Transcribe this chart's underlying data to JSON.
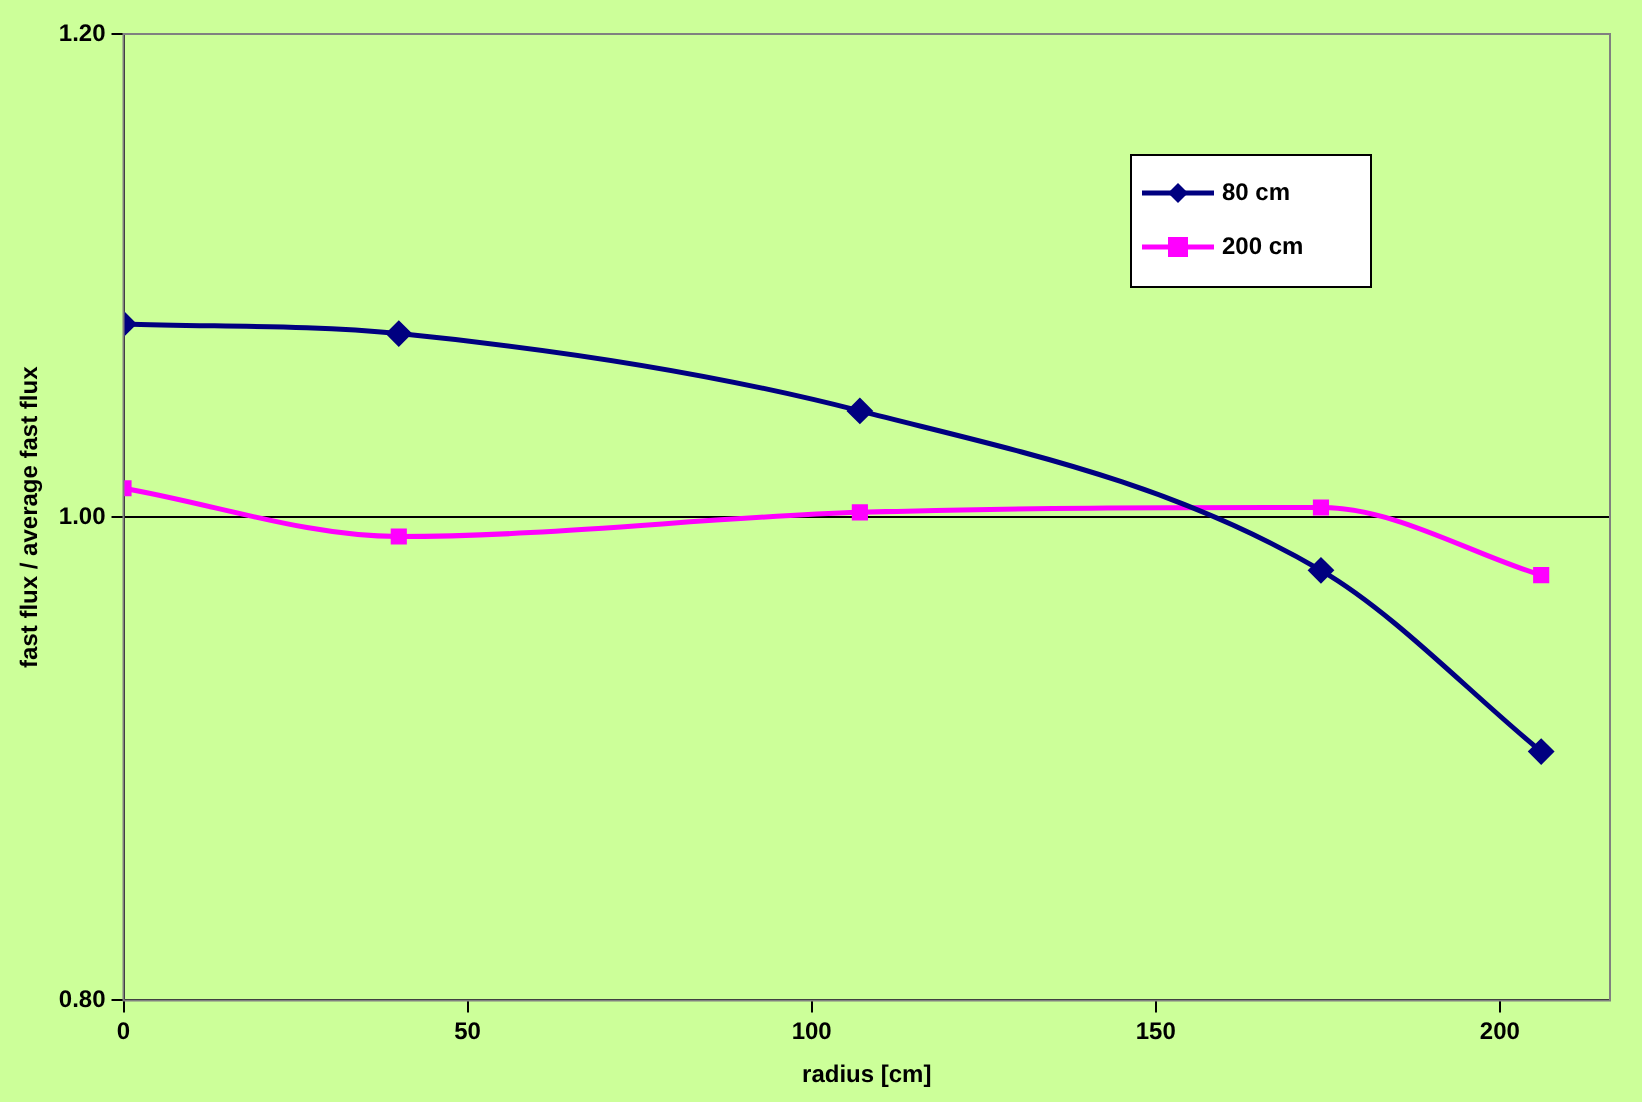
{
  "chart_data": {
    "type": "line",
    "xlabel": "radius [cm]",
    "ylabel": "fast flux / average fast flux",
    "xlim": [
      0,
      216
    ],
    "xticks": [
      0,
      50,
      100,
      150,
      200
    ],
    "ylim": [
      0.8,
      1.2
    ],
    "yticks": [
      {
        "value": 0.8,
        "label": "0.80"
      },
      {
        "value": 1.0,
        "label": "1.00"
      },
      {
        "value": 1.2,
        "label": "1.20"
      }
    ],
    "grid": "y",
    "legend": "top right",
    "series": [
      {
        "name": "80 cm",
        "color": "#000080",
        "marker": "diamond",
        "x": [
          0,
          40,
          107,
          174,
          206
        ],
        "values": [
          1.08,
          1.076,
          1.044,
          0.978,
          0.903
        ]
      },
      {
        "name": "200 cm",
        "color": "#ff00ff",
        "marker": "square",
        "x": [
          0,
          40,
          107,
          174,
          206
        ],
        "values": [
          1.012,
          0.992,
          1.002,
          1.004,
          0.976
        ]
      }
    ]
  }
}
